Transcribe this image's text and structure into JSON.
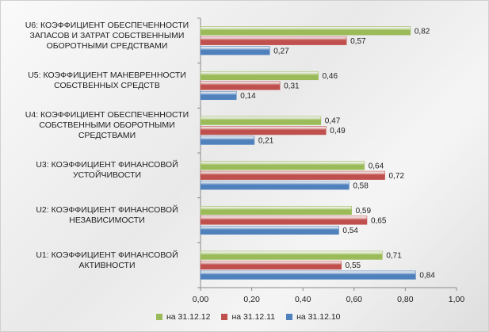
{
  "chart_data": {
    "type": "bar",
    "orientation": "horizontal",
    "categories": [
      "U6: КОЭФФИЦИЕНТ ОБЕСПЕЧЕННОСТИ ЗАПАСОВ И ЗАТРАТ СОБСТВЕННЫМИ ОБОРОТНЫМИ СРЕДСТВАМИ",
      "U5: КОЭФФИЦИЕНТ МАНЕВРЕННОСТИ СОБСТВЕННЫХ СРЕДСТВ",
      "U4: КОЭФФИЦИЕНТ ОБЕСПЕЧЕННОСТИ СОБСТВЕННЫМИ ОБОРОТНЫМИ СРЕДСТВАМИ",
      "U3: КОЭФФИЦИЕНТ ФИНАНСОВОЙ УСТОЙЧИВОСТИ",
      "U2: КОЭФФИЦИЕНТ ФИНАНСОВОЙ НЕЗАВИСИМОСТИ",
      "U1: КОЭФФИЦИЕНТ ФИНАНСОВОЙ АКТИВНОСТИ"
    ],
    "category_lines": [
      [
        "U6: КОЭФФИЦИЕНТ ОБЕСПЕЧЕННОСТИ",
        "ЗАПАСОВ И ЗАТРАТ СОБСТВЕННЫМИ",
        "ОБОРОТНЫМИ СРЕДСТВАМИ"
      ],
      [
        "U5: КОЭФФИЦИЕНТ МАНЕВРЕННОСТИ",
        "СОБСТВЕННЫХ СРЕДСТВ"
      ],
      [
        "U4: КОЭФФИЦИЕНТ ОБЕСПЕЧЕННОСТИ",
        "СОБСТВЕННЫМИ ОБОРОТНЫМИ",
        "СРЕДСТВАМИ"
      ],
      [
        "U3: КОЭФФИЦИЕНТ ФИНАНСОВОЙ",
        "УСТОЙЧИВОСТИ"
      ],
      [
        "U2: КОЭФФИЦИЕНТ ФИНАНСОВОЙ",
        "НЕЗАВИСИМОСТИ"
      ],
      [
        "U1: КОЭФФИЦИЕНТ ФИНАНСОВОЙ",
        "АКТИВНОСТИ"
      ]
    ],
    "series": [
      {
        "name": "на 31.12.12",
        "color": "#9BBB59",
        "values": [
          0.82,
          0.46,
          0.47,
          0.64,
          0.59,
          0.71
        ],
        "labels": [
          "0,82",
          "0,46",
          "0,47",
          "0,64",
          "0,59",
          "0,71"
        ]
      },
      {
        "name": "на 31.12.11",
        "color": "#C0504D",
        "values": [
          0.57,
          0.31,
          0.49,
          0.72,
          0.65,
          0.55
        ],
        "labels": [
          "0,57",
          "0,31",
          "0,49",
          "0,72",
          "0,65",
          "0,55"
        ]
      },
      {
        "name": "на 31.12.10",
        "color": "#4F81BD",
        "values": [
          0.27,
          0.14,
          0.21,
          0.58,
          0.54,
          0.84
        ],
        "labels": [
          "0,27",
          "0,14",
          "0,21",
          "0,58",
          "0,54",
          "0,84"
        ]
      }
    ],
    "xlim": [
      0,
      1
    ],
    "x_ticks": [
      0,
      0.2,
      0.4,
      0.6,
      0.8,
      1.0
    ],
    "x_tick_labels": [
      "0,00",
      "0,20",
      "0,40",
      "0,60",
      "0,80",
      "1,00"
    ],
    "grid": false,
    "legend_position": "bottom",
    "title": "",
    "xlabel": "",
    "ylabel": ""
  }
}
